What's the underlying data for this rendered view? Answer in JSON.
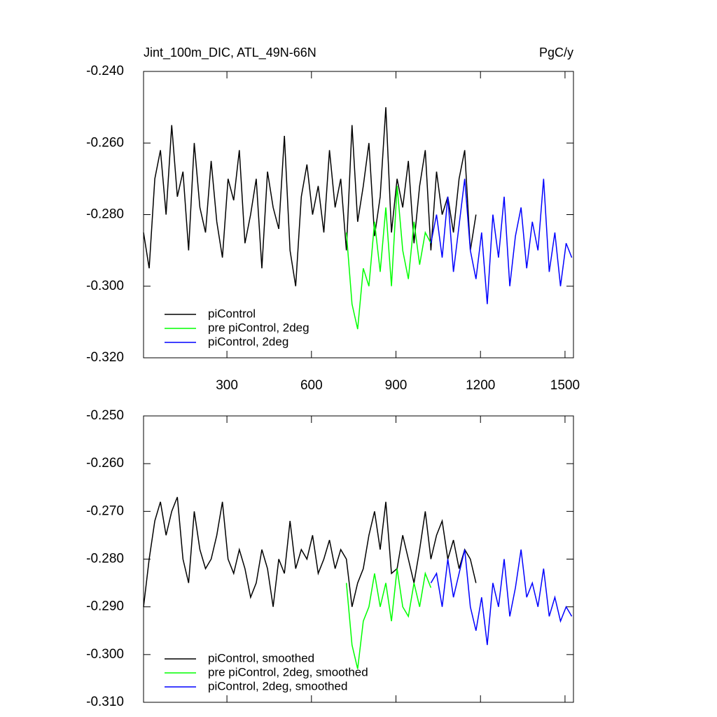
{
  "chart_data": [
    {
      "type": "line",
      "title": "Jint_100m_DIC, ATL_49N-66N",
      "units": "PgC/y",
      "x": [
        4,
        24,
        44,
        64,
        84,
        104,
        124,
        144,
        164,
        184,
        204,
        224,
        244,
        264,
        284,
        304,
        324,
        344,
        364,
        384,
        404,
        424,
        444,
        464,
        484,
        504,
        524,
        544,
        564,
        584,
        604,
        624,
        644,
        664,
        684,
        704,
        724,
        744,
        764,
        784,
        804,
        824,
        844,
        864,
        884,
        904,
        924,
        944,
        964,
        984,
        1004,
        1024,
        1044,
        1064,
        1084,
        1104,
        1124,
        1144,
        1164,
        1184,
        1204,
        1224,
        1244,
        1264,
        1284,
        1304,
        1324,
        1344,
        1364,
        1384,
        1404,
        1424,
        1444,
        1464,
        1484,
        1504,
        1524
      ],
      "series": [
        {
          "name": "piControl",
          "color": "#000000",
          "values": [
            -0.285,
            -0.295,
            -0.27,
            -0.262,
            -0.28,
            -0.255,
            -0.275,
            -0.268,
            -0.29,
            -0.26,
            -0.278,
            -0.285,
            -0.265,
            -0.282,
            -0.292,
            -0.27,
            -0.276,
            -0.262,
            -0.288,
            -0.28,
            -0.27,
            -0.295,
            -0.268,
            -0.278,
            -0.284,
            -0.258,
            -0.29,
            -0.3,
            -0.275,
            -0.266,
            -0.28,
            -0.272,
            -0.285,
            -0.262,
            -0.278,
            -0.27,
            -0.29,
            -0.255,
            -0.282,
            -0.272,
            -0.26,
            -0.286,
            -0.275,
            -0.25,
            -0.285,
            -0.27,
            -0.278,
            -0.265,
            -0.288,
            -0.272,
            -0.262,
            -0.29,
            -0.268,
            -0.28,
            -0.275,
            -0.285,
            -0.27,
            -0.262,
            -0.29,
            -0.28,
            null,
            null,
            null,
            null,
            null,
            null,
            null,
            null,
            null,
            null,
            null,
            null,
            null,
            null,
            null,
            null,
            null
          ]
        },
        {
          "name": "pre piControl, 2deg",
          "color": "#00ff00",
          "values": [
            null,
            null,
            null,
            null,
            null,
            null,
            null,
            null,
            null,
            null,
            null,
            null,
            null,
            null,
            null,
            null,
            null,
            null,
            null,
            null,
            null,
            null,
            null,
            null,
            null,
            null,
            null,
            null,
            null,
            null,
            null,
            null,
            null,
            null,
            null,
            null,
            -0.285,
            -0.305,
            -0.312,
            -0.295,
            -0.3,
            -0.282,
            -0.296,
            -0.278,
            -0.3,
            -0.272,
            -0.29,
            -0.298,
            -0.282,
            -0.294,
            -0.285,
            -0.288,
            null,
            null,
            null,
            null,
            null,
            null,
            null,
            null,
            null,
            null,
            null,
            null,
            null,
            null,
            null,
            null,
            null,
            null,
            null,
            null,
            null,
            null,
            null,
            null,
            null
          ]
        },
        {
          "name": "piControl, 2deg",
          "color": "#0000ff",
          "values": [
            null,
            null,
            null,
            null,
            null,
            null,
            null,
            null,
            null,
            null,
            null,
            null,
            null,
            null,
            null,
            null,
            null,
            null,
            null,
            null,
            null,
            null,
            null,
            null,
            null,
            null,
            null,
            null,
            null,
            null,
            null,
            null,
            null,
            null,
            null,
            null,
            null,
            null,
            null,
            null,
            null,
            null,
            null,
            null,
            null,
            null,
            null,
            null,
            null,
            null,
            null,
            -0.288,
            -0.28,
            -0.292,
            -0.275,
            -0.296,
            -0.283,
            -0.27,
            -0.29,
            -0.298,
            -0.285,
            -0.305,
            -0.28,
            -0.292,
            -0.275,
            -0.3,
            -0.286,
            -0.278,
            -0.295,
            -0.282,
            -0.29,
            -0.27,
            -0.296,
            -0.285,
            -0.3,
            -0.288,
            -0.292
          ]
        }
      ],
      "xlim": [
        4,
        1530
      ],
      "xticks": [
        300,
        600,
        900,
        1200,
        1500
      ],
      "xtick_labels": true,
      "ylim": [
        -0.32,
        -0.24
      ],
      "yticks": [
        {
          "value": -0.24,
          "label": "-0.240"
        },
        {
          "value": -0.26,
          "label": "-0.260"
        },
        {
          "value": -0.28,
          "label": "-0.280"
        },
        {
          "value": -0.3,
          "label": "-0.300"
        },
        {
          "value": -0.32,
          "label": "-0.320"
        }
      ],
      "legend": "lower-left"
    },
    {
      "type": "line",
      "x": [
        4,
        24,
        44,
        64,
        84,
        104,
        124,
        144,
        164,
        184,
        204,
        224,
        244,
        264,
        284,
        304,
        324,
        344,
        364,
        384,
        404,
        424,
        444,
        464,
        484,
        504,
        524,
        544,
        564,
        584,
        604,
        624,
        644,
        664,
        684,
        704,
        724,
        744,
        764,
        784,
        804,
        824,
        844,
        864,
        884,
        904,
        924,
        944,
        964,
        984,
        1004,
        1024,
        1044,
        1064,
        1084,
        1104,
        1124,
        1144,
        1164,
        1184,
        1204,
        1224,
        1244,
        1264,
        1284,
        1304,
        1324,
        1344,
        1364,
        1384,
        1404,
        1424,
        1444,
        1464,
        1484,
        1504,
        1524
      ],
      "series": [
        {
          "name": "piControl, smoothed",
          "color": "#000000",
          "values": [
            -0.29,
            -0.28,
            -0.272,
            -0.268,
            -0.275,
            -0.27,
            -0.267,
            -0.28,
            -0.285,
            -0.27,
            -0.278,
            -0.282,
            -0.28,
            -0.275,
            -0.268,
            -0.28,
            -0.283,
            -0.278,
            -0.282,
            -0.288,
            -0.285,
            -0.278,
            -0.282,
            -0.29,
            -0.28,
            -0.283,
            -0.272,
            -0.282,
            -0.278,
            -0.28,
            -0.275,
            -0.283,
            -0.28,
            -0.276,
            -0.282,
            -0.278,
            -0.28,
            -0.29,
            -0.285,
            -0.282,
            -0.275,
            -0.27,
            -0.278,
            -0.268,
            -0.283,
            -0.282,
            -0.275,
            -0.28,
            -0.285,
            -0.278,
            -0.27,
            -0.28,
            -0.275,
            -0.272,
            -0.28,
            -0.276,
            -0.282,
            -0.278,
            -0.28,
            -0.285,
            null,
            null,
            null,
            null,
            null,
            null,
            null,
            null,
            null,
            null,
            null,
            null,
            null,
            null,
            null,
            null,
            null
          ]
        },
        {
          "name": "pre piControl, 2deg, smoothed",
          "color": "#00ff00",
          "values": [
            null,
            null,
            null,
            null,
            null,
            null,
            null,
            null,
            null,
            null,
            null,
            null,
            null,
            null,
            null,
            null,
            null,
            null,
            null,
            null,
            null,
            null,
            null,
            null,
            null,
            null,
            null,
            null,
            null,
            null,
            null,
            null,
            null,
            null,
            null,
            null,
            -0.285,
            -0.298,
            -0.303,
            -0.293,
            -0.29,
            -0.283,
            -0.29,
            -0.285,
            -0.293,
            -0.282,
            -0.29,
            -0.292,
            -0.285,
            -0.29,
            -0.283,
            -0.286,
            null,
            null,
            null,
            null,
            null,
            null,
            null,
            null,
            null,
            null,
            null,
            null,
            null,
            null,
            null,
            null,
            null,
            null,
            null,
            null,
            null,
            null,
            null,
            null,
            null
          ]
        },
        {
          "name": "piControl, 2deg, smoothed",
          "color": "#0000ff",
          "values": [
            null,
            null,
            null,
            null,
            null,
            null,
            null,
            null,
            null,
            null,
            null,
            null,
            null,
            null,
            null,
            null,
            null,
            null,
            null,
            null,
            null,
            null,
            null,
            null,
            null,
            null,
            null,
            null,
            null,
            null,
            null,
            null,
            null,
            null,
            null,
            null,
            null,
            null,
            null,
            null,
            null,
            null,
            null,
            null,
            null,
            null,
            null,
            null,
            null,
            null,
            null,
            -0.285,
            -0.283,
            -0.29,
            -0.28,
            -0.288,
            -0.283,
            -0.278,
            -0.29,
            -0.295,
            -0.288,
            -0.298,
            -0.285,
            -0.29,
            -0.28,
            -0.292,
            -0.286,
            -0.278,
            -0.288,
            -0.285,
            -0.29,
            -0.282,
            -0.292,
            -0.288,
            -0.293,
            -0.29,
            -0.292
          ]
        }
      ],
      "xlim": [
        4,
        1530
      ],
      "xticks": [
        300,
        600,
        900,
        1200,
        1500
      ],
      "xtick_labels": false,
      "ylim": [
        -0.31,
        -0.25
      ],
      "yticks": [
        {
          "value": -0.25,
          "label": "-0.250"
        },
        {
          "value": -0.26,
          "label": "-0.260"
        },
        {
          "value": -0.27,
          "label": "-0.270"
        },
        {
          "value": -0.28,
          "label": "-0.280"
        },
        {
          "value": -0.29,
          "label": "-0.290"
        },
        {
          "value": -0.3,
          "label": "-0.300"
        },
        {
          "value": -0.31,
          "label": "-0.310"
        }
      ],
      "legend": "lower-left"
    }
  ]
}
